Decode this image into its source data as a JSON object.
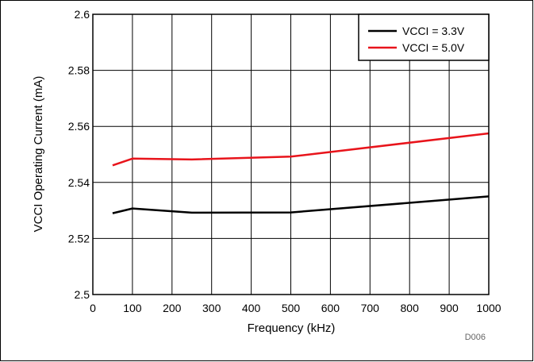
{
  "chart_data": {
    "type": "line",
    "title": "",
    "xlabel": "Frequency (kHz)",
    "ylabel": "VCCI Operating Current (mA)",
    "xlim": [
      0,
      1000
    ],
    "ylim": [
      2.5,
      2.6
    ],
    "xticks": [
      "0",
      "100",
      "200",
      "300",
      "400",
      "500",
      "600",
      "700",
      "800",
      "900",
      "1000"
    ],
    "yticks": [
      "2.5",
      "2.52",
      "2.54",
      "2.56",
      "2.58",
      "2.6"
    ],
    "grid": true,
    "legend_position": "top-right",
    "series": [
      {
        "name": "VCCI = 3.3V",
        "color": "#000000",
        "x": [
          50,
          100,
          250,
          500,
          1000
        ],
        "y": [
          2.529,
          2.5307,
          2.5292,
          2.5293,
          2.535
        ]
      },
      {
        "name": "VCCI = 5.0V",
        "color": "#e8141b",
        "x": [
          50,
          100,
          250,
          500,
          1000
        ],
        "y": [
          2.5461,
          2.5485,
          2.5482,
          2.5492,
          2.5575
        ]
      }
    ]
  },
  "figure_id": "D006"
}
